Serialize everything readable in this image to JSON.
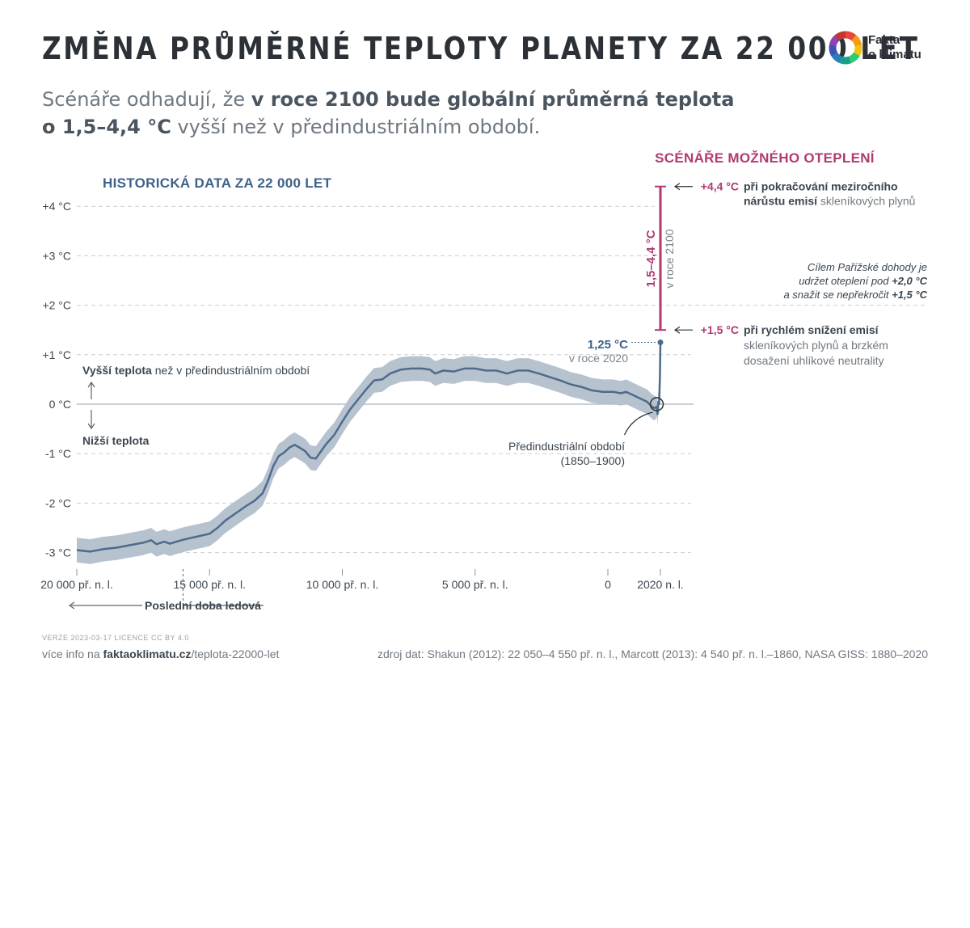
{
  "header": {
    "title": "ZMĚNA PRŮMĚRNÉ TEPLOTY PLANETY ZA 22 000 LET",
    "subtitle_part1": "Scénáře odhadují, že ",
    "subtitle_bold1": "v roce 2100 bude globální průměrná teplota",
    "subtitle_bold2": "o 1,5–4,4 °C",
    "subtitle_part2": " vyšší než v předindustriálním období."
  },
  "logo": {
    "line1": "Fakta",
    "line2": "o klimatu",
    "colors": [
      "#e8453c",
      "#f39c12",
      "#f1c40f",
      "#2ecc71",
      "#16a085",
      "#2980b9",
      "#3f51b5",
      "#8e44ad",
      "#c0392b"
    ]
  },
  "chart_data": {
    "type": "line",
    "title": "HISTORICKÁ DATA ZA 22 000 LET",
    "xlabel": "",
    "ylabel": "",
    "ylim": [
      -3.3,
      4.4
    ],
    "xlim": [
      -20000,
      2100
    ],
    "y_ticks": [
      {
        "v": 4,
        "label": "+4 °C"
      },
      {
        "v": 3,
        "label": "+3 °C"
      },
      {
        "v": 2,
        "label": "+2 °C"
      },
      {
        "v": 1,
        "label": "+1 °C"
      },
      {
        "v": 0,
        "label": "0 °C"
      },
      {
        "v": -1,
        "label": "-1 °C"
      },
      {
        "v": -2,
        "label": "-2 °C"
      },
      {
        "v": -3,
        "label": "-3 °C"
      }
    ],
    "x_ticks": [
      {
        "v": -20000,
        "label": "20 000 př. n. l."
      },
      {
        "v": -15000,
        "label": "15 000 př. n. l."
      },
      {
        "v": -10000,
        "label": "10 000 př. n. l."
      },
      {
        "v": -5000,
        "label": "5 000 př. n. l."
      },
      {
        "v": 0,
        "label": "0"
      },
      {
        "v": 2020,
        "label": "2020 n. l."
      }
    ],
    "grid": true,
    "series": [
      {
        "uncertainty": 0.25,
        "color": "#4e6b8c",
        "band_color": "#b3bfcc",
        "points": [
          [
            -20000,
            -2.95
          ],
          [
            -19500,
            -2.98
          ],
          [
            -19000,
            -2.93
          ],
          [
            -18500,
            -2.9
          ],
          [
            -18000,
            -2.85
          ],
          [
            -17500,
            -2.8
          ],
          [
            -17200,
            -2.75
          ],
          [
            -17000,
            -2.83
          ],
          [
            -16700,
            -2.78
          ],
          [
            -16500,
            -2.82
          ],
          [
            -16000,
            -2.74
          ],
          [
            -15500,
            -2.68
          ],
          [
            -15000,
            -2.62
          ],
          [
            -14700,
            -2.5
          ],
          [
            -14400,
            -2.35
          ],
          [
            -14000,
            -2.2
          ],
          [
            -13600,
            -2.05
          ],
          [
            -13300,
            -1.95
          ],
          [
            -13000,
            -1.8
          ],
          [
            -12800,
            -1.55
          ],
          [
            -12600,
            -1.25
          ],
          [
            -12400,
            -1.05
          ],
          [
            -12200,
            -0.98
          ],
          [
            -12000,
            -0.88
          ],
          [
            -11800,
            -0.82
          ],
          [
            -11600,
            -0.88
          ],
          [
            -11400,
            -0.95
          ],
          [
            -11200,
            -1.08
          ],
          [
            -11000,
            -1.1
          ],
          [
            -10800,
            -0.95
          ],
          [
            -10600,
            -0.8
          ],
          [
            -10300,
            -0.62
          ],
          [
            -10000,
            -0.35
          ],
          [
            -9700,
            -0.1
          ],
          [
            -9400,
            0.1
          ],
          [
            -9100,
            0.3
          ],
          [
            -8800,
            0.48
          ],
          [
            -8500,
            0.5
          ],
          [
            -8200,
            0.62
          ],
          [
            -7800,
            0.7
          ],
          [
            -7400,
            0.72
          ],
          [
            -7000,
            0.72
          ],
          [
            -6700,
            0.7
          ],
          [
            -6500,
            0.62
          ],
          [
            -6200,
            0.68
          ],
          [
            -5800,
            0.66
          ],
          [
            -5400,
            0.72
          ],
          [
            -5000,
            0.72
          ],
          [
            -4600,
            0.68
          ],
          [
            -4200,
            0.68
          ],
          [
            -3800,
            0.62
          ],
          [
            -3400,
            0.68
          ],
          [
            -3000,
            0.68
          ],
          [
            -2600,
            0.62
          ],
          [
            -2200,
            0.55
          ],
          [
            -1800,
            0.48
          ],
          [
            -1400,
            0.4
          ],
          [
            -1000,
            0.35
          ],
          [
            -600,
            0.28
          ],
          [
            -200,
            0.25
          ],
          [
            200,
            0.25
          ],
          [
            500,
            0.22
          ],
          [
            700,
            0.25
          ],
          [
            900,
            0.2
          ],
          [
            1100,
            0.15
          ],
          [
            1300,
            0.1
          ],
          [
            1500,
            0.05
          ],
          [
            1700,
            -0.05
          ],
          [
            1800,
            -0.08
          ],
          [
            1880,
            -0.05
          ],
          [
            1910,
            -0.2
          ],
          [
            1940,
            0.05
          ],
          [
            1970,
            0.0
          ],
          [
            2000,
            0.55
          ],
          [
            2020,
            1.25
          ]
        ]
      }
    ],
    "scenarios": {
      "heading": "SCÉNÁŘE MOŽNÉHO OTEPLENÍ",
      "year": 2100,
      "low": 1.5,
      "high": 4.4,
      "low_label": "+1,5 °C",
      "high_label": "+4,4 °C",
      "range_label": "1,5–4,4 °C",
      "range_sub": "v roce 2100",
      "color": "#b03a71"
    },
    "annotations": {
      "high_text_bold": "při pokračování meziročního",
      "high_text_bold2": "nárůstu emisí",
      "high_text_rest": " skleníkových plynů",
      "low_text_bold": "při rychlém snížení emisí",
      "low_text_line2": "skleníkových plynů a brzkém",
      "low_text_line3": "dosažení uhlíkové neutrality",
      "paris_line1": "Cílem Pařížské dohody je",
      "paris_line2_a": "udržet oteplení pod ",
      "paris_line2_b": "+2,0 °C",
      "paris_line3_a": "a snažit se nepřekročit ",
      "paris_line3_b": "+1,5 °C",
      "now_value": "1,25 °C",
      "now_sub": "v roce 2020",
      "above_bold": "Vyšší teplota",
      "above_rest": " než v předindustriálním období",
      "below_bold": "Nižší teplota",
      "preind_line1": "Předindustriální období",
      "preind_line2": "(1850–1900)",
      "ice_age": "Poslední doba ledová",
      "ice_age_end": -16000
    }
  },
  "footer": {
    "meta": "VERZE 2023-03-17    LICENCE CC BY 4.0",
    "info_prefix": "více info na ",
    "info_bold": "faktaoklimatu.cz",
    "info_rest": "/teplota-22000-let",
    "source": "zdroj dat: Shakun (2012): 22 050–4 550 př. n. l., Marcott (2013): 4 540 př. n. l.–1860, NASA GISS: 1880–2020"
  }
}
